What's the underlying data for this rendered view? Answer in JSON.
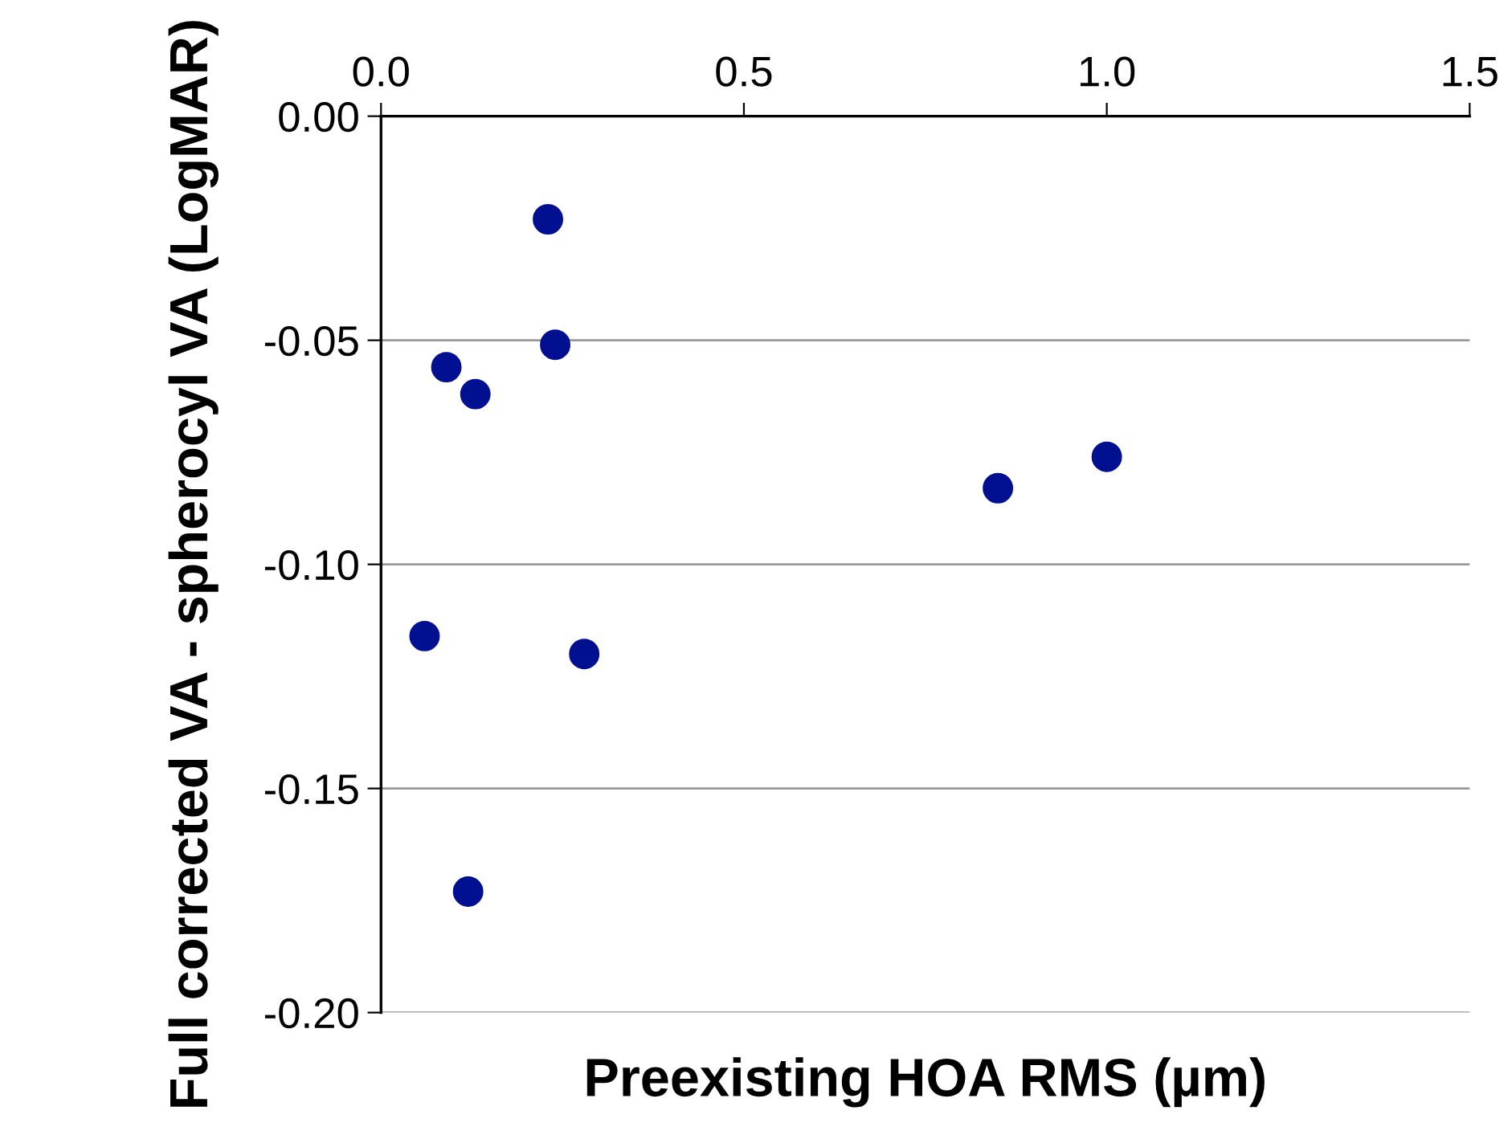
{
  "chart_data": {
    "type": "scatter",
    "xlabel": "Preexisting HOA RMS (µm)",
    "ylabel": "Full corrected VA - spherocyl VA (LogMAR)",
    "x": [
      0.23,
      0.24,
      0.09,
      0.13,
      0.85,
      1.0,
      0.06,
      0.28,
      0.12
    ],
    "series": [
      {
        "color": "#001090",
        "values": [
          -0.023,
          -0.051,
          -0.056,
          -0.062,
          -0.083,
          -0.076,
          -0.116,
          -0.12,
          -0.173
        ]
      }
    ],
    "xlim": [
      0,
      1.5
    ],
    "xticks": [
      {
        "value": 0,
        "label": "0.0"
      },
      0.5,
      {
        "value": 1,
        "label": "1.0"
      },
      1.5
    ],
    "ylim": [
      -0.2,
      0
    ],
    "yticks": [
      {
        "value": -0.2,
        "label": "-0.20"
      },
      {
        "value": -0.15,
        "label": "-0.15"
      },
      {
        "value": -0.1,
        "label": "-0.10"
      },
      {
        "value": -0.05,
        "label": "-0.05"
      },
      {
        "value": 0,
        "label": "0.00"
      }
    ],
    "grid": "y",
    "marker": "circle"
  }
}
